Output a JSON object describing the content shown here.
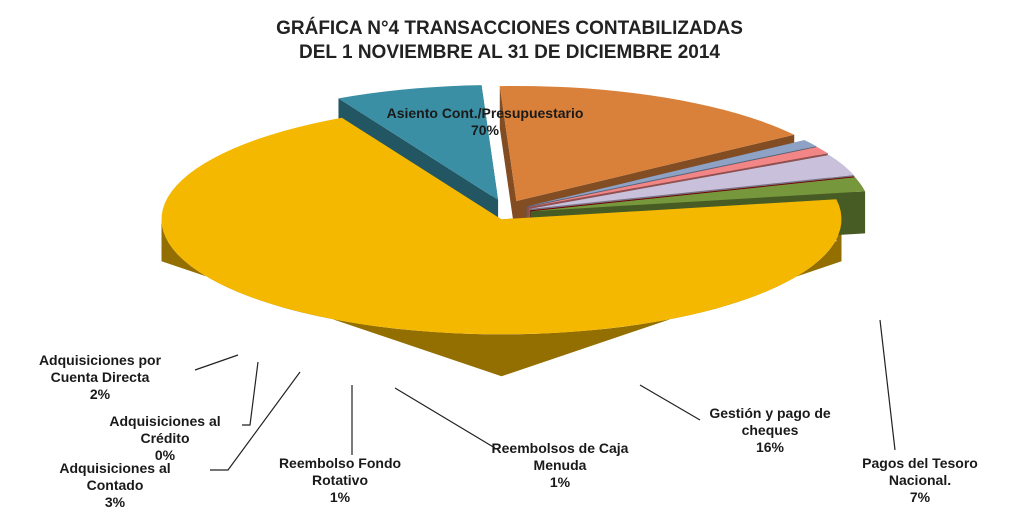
{
  "chart_data": {
    "type": "pie3d",
    "title": [
      "GRÁFICA N°4 TRANSACCIONES CONTABILIZADAS",
      "DEL 1 NOVIEMBRE AL 31 DE DICIEMBRE 2014"
    ],
    "categories": [
      "Asiento Cont./Presupuestario",
      "Pagos del Tesoro Nacional.",
      "Gestión y pago  de cheques",
      "Reembolsos de Caja Menuda",
      "Reembolso Fondo Rotativo",
      "Adquisiciones al Contado",
      "Adquisiciones al Crédito",
      "Adquisiciones por Cuenta Directa"
    ],
    "values": [
      70,
      7,
      16,
      1,
      1,
      3,
      0,
      2
    ],
    "value_labels": [
      "70%",
      "7%",
      "16%",
      "1%",
      "1%",
      "3%",
      "0%",
      "2%"
    ],
    "colors": [
      "#f5b800",
      "#3a8fa5",
      "#d9813a",
      "#8ea2c6",
      "#f28585",
      "#c9c0dc",
      "#c00000",
      "#76973c"
    ]
  }
}
